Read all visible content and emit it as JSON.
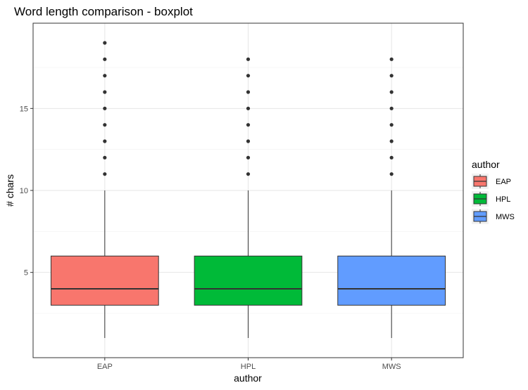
{
  "chart_data": {
    "type": "boxplot",
    "title": "Word length comparison - boxplot",
    "xlabel": "author",
    "ylabel": "# chars",
    "categories": [
      "EAP",
      "HPL",
      "MWS"
    ],
    "ylim": [
      -0.2,
      20.2
    ],
    "yticks": [
      5,
      10,
      15
    ],
    "grid": true,
    "legend": {
      "title": "author",
      "position": "right",
      "entries": [
        "EAP",
        "HPL",
        "MWS"
      ]
    },
    "colors": {
      "EAP": "#F8766D",
      "HPL": "#00BA38",
      "MWS": "#619CFF"
    },
    "series": [
      {
        "category": "EAP",
        "min": 1,
        "q1": 3,
        "median": 4,
        "q3": 6,
        "max": 10,
        "outliers": [
          11,
          12,
          13,
          14,
          15,
          16,
          17,
          18,
          19
        ]
      },
      {
        "category": "HPL",
        "min": 1,
        "q1": 3,
        "median": 4,
        "q3": 6,
        "max": 10,
        "outliers": [
          11,
          12,
          13,
          14,
          15,
          16,
          17,
          18
        ]
      },
      {
        "category": "MWS",
        "min": 1,
        "q1": 3,
        "median": 4,
        "q3": 6,
        "max": 10,
        "outliers": [
          11,
          12,
          13,
          14,
          15,
          16,
          17,
          18
        ]
      }
    ]
  }
}
